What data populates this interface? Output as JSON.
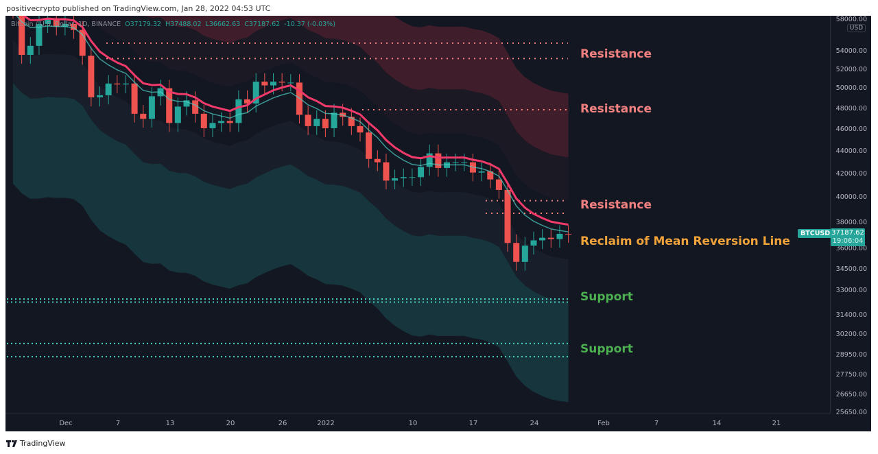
{
  "header": {
    "published": "positivecrypto published on TradingView.com, Jan 28, 2022 04:53 UTC"
  },
  "legend": {
    "symbol": "Bitcoin / U.S. Dollar, 1D, BINANCE",
    "open": "O37179.32",
    "high": "H37488.02",
    "low": "L36662.63",
    "close": "C37187.62",
    "change": "-10.37 (-0.03%)"
  },
  "price_axis": {
    "currency": "USD",
    "ticks": [
      "58000.00",
      "54000.00",
      "52000.00",
      "50000.00",
      "48000.00",
      "46000.00",
      "44000.00",
      "42000.00",
      "40000.00",
      "38000.00",
      "36000.00",
      "34500.00",
      "33000.00",
      "31400.00",
      "30200.00",
      "28950.00",
      "27750.00",
      "26650.00",
      "25650.00"
    ]
  },
  "time_axis": {
    "ticks": [
      "Dec",
      "7",
      "13",
      "20",
      "26",
      "2022",
      "10",
      "17",
      "24",
      "Feb",
      "7",
      "14",
      "21"
    ]
  },
  "price_tag": {
    "symbol": "BTCUSD",
    "price": "37187.62",
    "countdown": "19:06:04"
  },
  "annotations": [
    {
      "text": "Resistance",
      "kind": "res"
    },
    {
      "text": "Resistance",
      "kind": "res"
    },
    {
      "text": "Resistance",
      "kind": "res"
    },
    {
      "text": "Reclaim of Mean Reversion Line",
      "kind": "mid"
    },
    {
      "text": "Support",
      "kind": "sup"
    },
    {
      "text": "Support",
      "kind": "sup"
    }
  ],
  "footer": {
    "brand": "TradingView"
  },
  "colors": {
    "up": "#26a69a",
    "down": "#ef5350",
    "resistance": "#f08080",
    "support": "#4dd0c4",
    "mean": "#f23a6a",
    "background": "#131722"
  },
  "chart_data": {
    "type": "candlestick",
    "title": "Bitcoin / U.S. Dollar, 1D, BINANCE",
    "start_date": "2021-11-25",
    "closes": [
      58900,
      53700,
      54700,
      57200,
      57800,
      56900,
      57200,
      56500,
      53600,
      49200,
      49400,
      50600,
      50500,
      50600,
      47600,
      47100,
      49300,
      50100,
      46700,
      48300,
      48900,
      47600,
      46200,
      46700,
      46900,
      46700,
      49000,
      48600,
      50800,
      50400,
      50800,
      50700,
      50700,
      47500,
      46400,
      47100,
      46200,
      47700,
      47300,
      46400,
      45800,
      43400,
      43100,
      41500,
      41700,
      41800,
      41800,
      42700,
      43900,
      42600,
      43100,
      43100,
      43100,
      42200,
      42300,
      41600,
      40700,
      36500,
      35100,
      36300,
      36700,
      36900,
      36800,
      37200,
      37187.62
    ],
    "resistance_levels": [
      55000,
      53300,
      48000,
      39800,
      38800
    ],
    "support_levels": [
      32500,
      32300,
      29700,
      28900
    ],
    "ylim": [
      25650,
      58000
    ],
    "scale": "log"
  }
}
